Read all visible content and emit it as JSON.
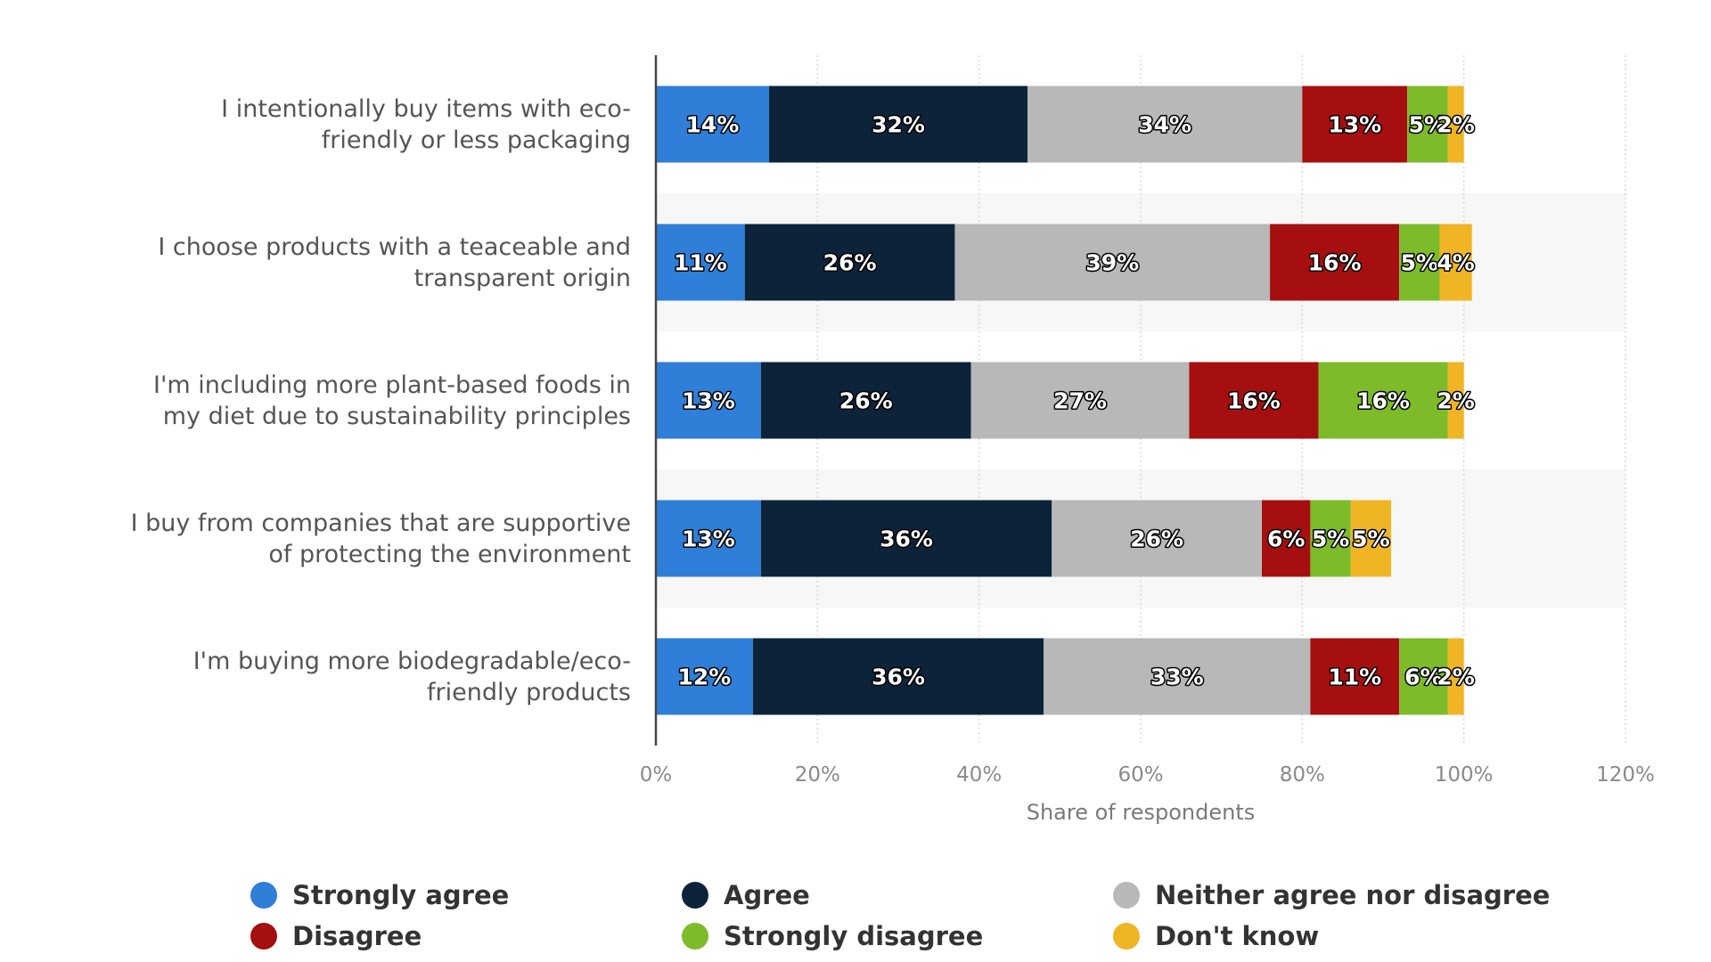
{
  "chart_data": {
    "type": "bar",
    "orientation": "horizontal",
    "stacked": true,
    "categories": [
      [
        "I intentionally buy items with eco-",
        "friendly or less packaging"
      ],
      [
        "I choose products with a teaceable and",
        "transparent origin"
      ],
      [
        "I'm including more plant-based foods in",
        "my diet due to sustainability principles"
      ],
      [
        "I buy from companies that are supportive",
        "of protecting the environment"
      ],
      [
        "I'm buying more biodegradable/eco-",
        "friendly products"
      ]
    ],
    "series": [
      {
        "name": "Strongly agree",
        "color": "#2f7ed8",
        "values": [
          14,
          11,
          13,
          13,
          12
        ],
        "labels": [
          "14%",
          "11%",
          "13%",
          "13%",
          "12%"
        ]
      },
      {
        "name": "Agree",
        "color": "#0d233a",
        "values": [
          32,
          26,
          26,
          36,
          36
        ],
        "labels": [
          "32%",
          "26%",
          "26%",
          "36%",
          "36%"
        ]
      },
      {
        "name": "Neither agree nor disagree",
        "color": "#b8b8b8",
        "values": [
          34,
          39,
          27,
          26,
          33
        ],
        "labels": [
          "34%",
          "39%",
          "27%",
          "26%",
          "33%"
        ]
      },
      {
        "name": "Disagree",
        "color": "#a50f0f",
        "values": [
          13,
          16,
          16,
          6,
          11
        ],
        "labels": [
          "13%",
          "16%",
          "16%",
          "6%",
          "11%"
        ]
      },
      {
        "name": "Strongly disagree",
        "color": "#7dbb2a",
        "values": [
          5,
          5,
          16,
          5,
          6
        ],
        "labels": [
          "5%",
          "5%",
          "16%",
          "5%",
          "6%"
        ]
      },
      {
        "name": "Don't know",
        "color": "#efb525",
        "values": [
          2,
          4,
          2,
          5,
          2
        ],
        "labels": [
          "2%",
          "4%",
          "2%",
          "5%",
          "2%"
        ]
      }
    ],
    "xlim": [
      0,
      120
    ],
    "xticks": [
      0,
      20,
      40,
      60,
      80,
      100,
      120
    ],
    "xtick_labels": [
      "0%",
      "20%",
      "40%",
      "60%",
      "80%",
      "100%",
      "120%"
    ],
    "xlabel": "Share of respondents",
    "ylabel": "",
    "title": "",
    "grid": true,
    "legend_position": "bottom"
  }
}
